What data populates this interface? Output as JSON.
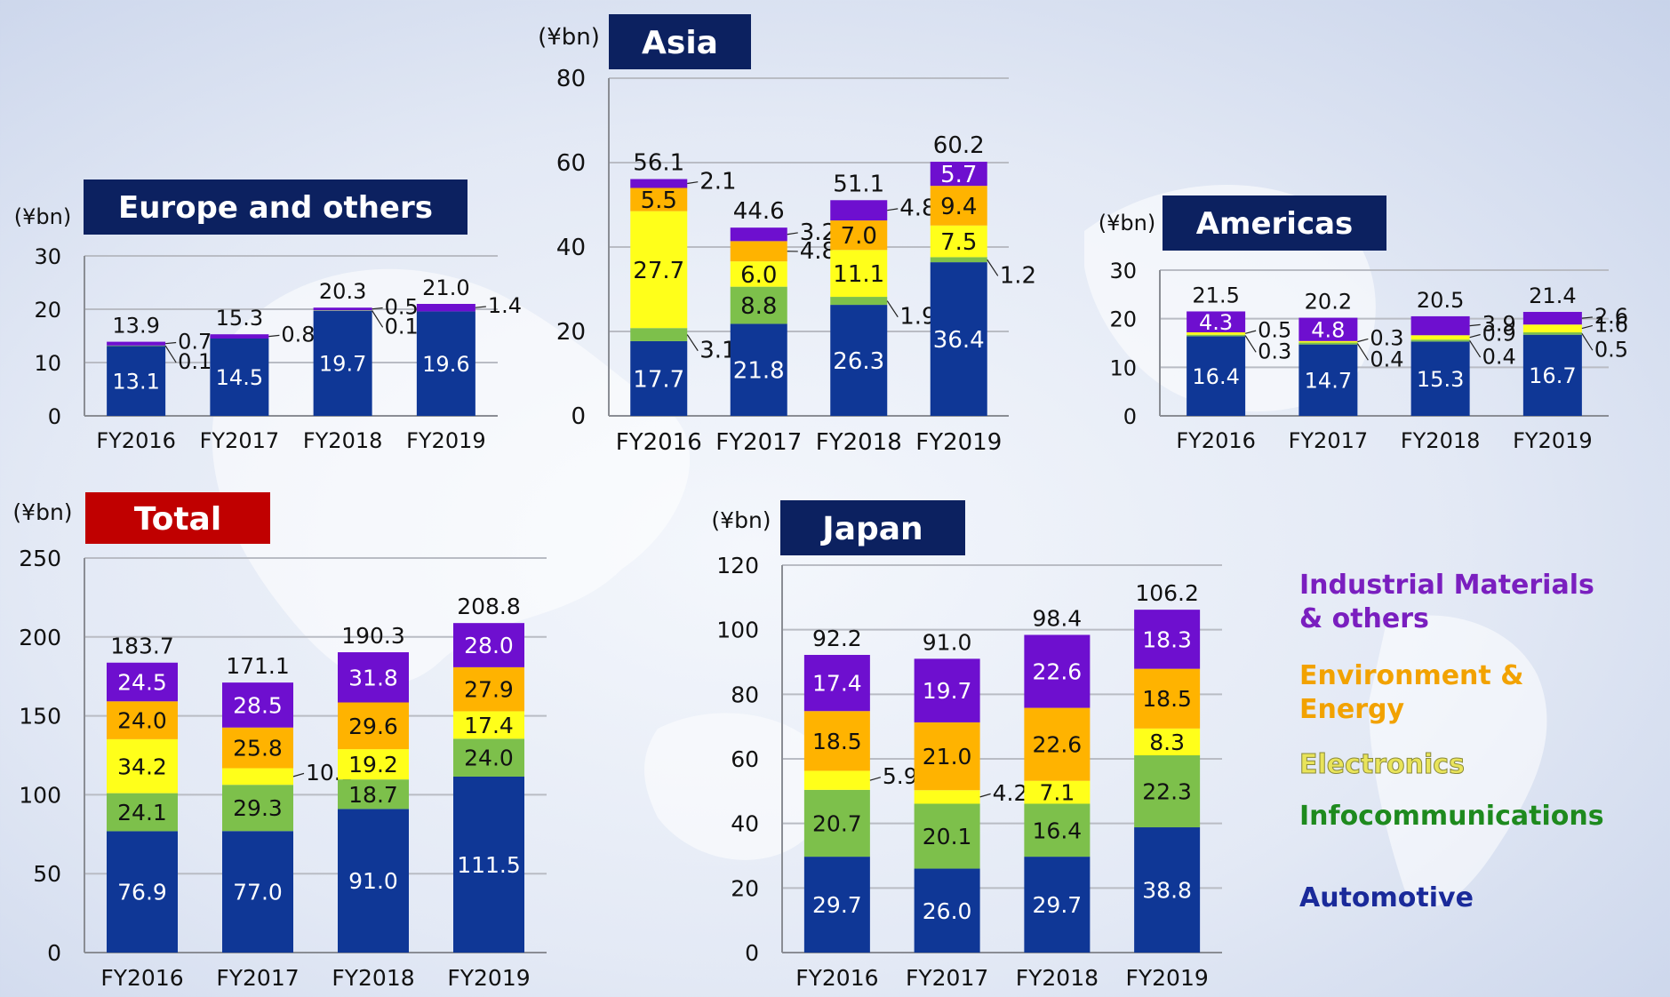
{
  "colors": {
    "automotive": "#0f3796",
    "infocommunications": "#7dc04b",
    "electronics": "#ffff1a",
    "environment_energy": "#ffb300",
    "industrial_materials": "#6e0fcf",
    "title_navy": "#0c2160",
    "title_red": "#c00000"
  },
  "legend": {
    "industrial_materials": "Industrial Materials & others",
    "environment_energy": "Environment & Energy",
    "electronics": "Electronics",
    "infocommunications": "Infocommunications",
    "automotive": "Automotive"
  },
  "chart_data": [
    {
      "id": "europe",
      "type": "bar",
      "stacked": true,
      "title": "Europe and others",
      "unit": "(¥bn)",
      "categories": [
        "FY2016",
        "FY2017",
        "FY2018",
        "FY2019"
      ],
      "ylim": [
        0,
        30
      ],
      "yticks": [
        0,
        10,
        20,
        30
      ],
      "grid": true,
      "totals": [
        "13.9",
        "15.3",
        "20.3",
        "21.0"
      ],
      "series": [
        {
          "key": "automotive",
          "values": [
            13.1,
            14.5,
            19.7,
            19.6
          ],
          "labels": [
            "13.1",
            "14.5",
            "19.7",
            "19.6"
          ]
        },
        {
          "key": "infocommunications",
          "values": [
            0.1,
            0,
            0.1,
            0
          ],
          "labels": [
            "0.1",
            "",
            "0.1",
            ""
          ]
        },
        {
          "key": "electronics",
          "values": [
            0,
            0,
            0,
            0
          ],
          "labels": [
            "",
            "",
            "",
            ""
          ]
        },
        {
          "key": "environment_energy",
          "values": [
            0,
            0,
            0,
            0
          ],
          "labels": [
            "",
            "",
            "",
            ""
          ]
        },
        {
          "key": "industrial_materials",
          "values": [
            0.7,
            0.8,
            0.5,
            1.4
          ],
          "labels": [
            "0.7",
            "0.8",
            "0.5",
            "1.4"
          ]
        }
      ]
    },
    {
      "id": "asia",
      "type": "bar",
      "stacked": true,
      "title": "Asia",
      "unit": "(¥bn)",
      "categories": [
        "FY2016",
        "FY2017",
        "FY2018",
        "FY2019"
      ],
      "ylim": [
        0,
        80
      ],
      "yticks": [
        0,
        20,
        40,
        60,
        80
      ],
      "grid": true,
      "totals": [
        "56.1",
        "44.6",
        "51.1",
        "60.2"
      ],
      "series": [
        {
          "key": "automotive",
          "values": [
            17.7,
            21.8,
            26.3,
            36.4
          ],
          "labels": [
            "17.7",
            "21.8",
            "26.3",
            "36.4"
          ]
        },
        {
          "key": "infocommunications",
          "values": [
            3.1,
            8.8,
            1.9,
            1.2
          ],
          "labels": [
            "3.1",
            "8.8",
            "1.9",
            "1.2"
          ]
        },
        {
          "key": "electronics",
          "values": [
            27.7,
            6.0,
            11.1,
            7.5
          ],
          "labels": [
            "27.7",
            "6.0",
            "11.1",
            "7.5"
          ]
        },
        {
          "key": "environment_energy",
          "values": [
            5.5,
            4.8,
            7.0,
            9.4
          ],
          "labels": [
            "5.5",
            "4.8",
            "7.0",
            "9.4"
          ]
        },
        {
          "key": "industrial_materials",
          "values": [
            2.1,
            3.2,
            4.8,
            5.7
          ],
          "labels": [
            "2.1",
            "3.2",
            "4.8",
            "5.7"
          ]
        }
      ]
    },
    {
      "id": "americas",
      "type": "bar",
      "stacked": true,
      "title": "Americas",
      "unit": "(¥bn)",
      "categories": [
        "FY2016",
        "FY2017",
        "FY2018",
        "FY2019"
      ],
      "ylim": [
        0,
        30
      ],
      "yticks": [
        0,
        10,
        20,
        30
      ],
      "grid": true,
      "totals": [
        "21.5",
        "20.2",
        "20.5",
        "21.4"
      ],
      "series": [
        {
          "key": "automotive",
          "values": [
            16.4,
            14.7,
            15.3,
            16.7
          ],
          "labels": [
            "16.4",
            "14.7",
            "15.3",
            "16.7"
          ]
        },
        {
          "key": "infocommunications",
          "values": [
            0.3,
            0.4,
            0.4,
            0.5
          ],
          "labels": [
            "0.3",
            "0.4",
            "0.4",
            "0.5"
          ]
        },
        {
          "key": "electronics",
          "values": [
            0.5,
            0.3,
            0.9,
            1.6
          ],
          "labels": [
            "0.5",
            "0.3",
            "0.9",
            "1.6"
          ]
        },
        {
          "key": "environment_energy",
          "values": [
            0,
            0,
            0,
            0
          ],
          "labels": [
            "",
            "",
            "",
            ""
          ]
        },
        {
          "key": "industrial_materials",
          "values": [
            4.3,
            4.8,
            3.9,
            2.6
          ],
          "labels": [
            "4.3",
            "4.8",
            "3.9",
            "2.6"
          ]
        }
      ]
    },
    {
      "id": "total",
      "type": "bar",
      "stacked": true,
      "title": "Total",
      "unit": "(¥bn)",
      "categories": [
        "FY2016",
        "FY2017",
        "FY2018",
        "FY2019"
      ],
      "ylim": [
        0,
        250
      ],
      "yticks": [
        0,
        50,
        100,
        150,
        200,
        250
      ],
      "grid": true,
      "totals": [
        "183.7",
        "171.1",
        "190.3",
        "208.8"
      ],
      "series": [
        {
          "key": "automotive",
          "values": [
            76.9,
            77.0,
            91.0,
            111.5
          ],
          "labels": [
            "76.9",
            "77.0",
            "91.0",
            "111.5"
          ]
        },
        {
          "key": "infocommunications",
          "values": [
            24.1,
            29.3,
            18.7,
            24.0
          ],
          "labels": [
            "24.1",
            "29.3",
            "18.7",
            "24.0"
          ]
        },
        {
          "key": "electronics",
          "values": [
            34.2,
            10.5,
            19.2,
            17.4
          ],
          "labels": [
            "34.2",
            "10.5",
            "19.2",
            "17.4"
          ]
        },
        {
          "key": "environment_energy",
          "values": [
            24.0,
            25.8,
            29.6,
            27.9
          ],
          "labels": [
            "24.0",
            "25.8",
            "29.6",
            "27.9"
          ]
        },
        {
          "key": "industrial_materials",
          "values": [
            24.5,
            28.5,
            31.8,
            28.0
          ],
          "labels": [
            "24.5",
            "28.5",
            "31.8",
            "28.0"
          ]
        }
      ]
    },
    {
      "id": "japan",
      "type": "bar",
      "stacked": true,
      "title": "Japan",
      "unit": "(¥bn)",
      "categories": [
        "FY2016",
        "FY2017",
        "FY2018",
        "FY2019"
      ],
      "ylim": [
        0,
        120
      ],
      "yticks": [
        0,
        20,
        40,
        60,
        80,
        100,
        120
      ],
      "grid": true,
      "totals": [
        "92.2",
        "91.0",
        "98.4",
        "106.2"
      ],
      "series": [
        {
          "key": "automotive",
          "values": [
            29.7,
            26.0,
            29.7,
            38.8
          ],
          "labels": [
            "29.7",
            "26.0",
            "29.7",
            "38.8"
          ]
        },
        {
          "key": "infocommunications",
          "values": [
            20.7,
            20.1,
            16.4,
            22.3
          ],
          "labels": [
            "20.7",
            "20.1",
            "16.4",
            "22.3"
          ]
        },
        {
          "key": "electronics",
          "values": [
            5.9,
            4.2,
            7.1,
            8.3
          ],
          "labels": [
            "5.9",
            "4.2",
            "7.1",
            "8.3"
          ]
        },
        {
          "key": "environment_energy",
          "values": [
            18.5,
            21.0,
            22.6,
            18.5
          ],
          "labels": [
            "18.5",
            "21.0",
            "22.6",
            "18.5"
          ]
        },
        {
          "key": "industrial_materials",
          "values": [
            17.4,
            19.7,
            22.6,
            18.3
          ],
          "labels": [
            "17.4",
            "19.7",
            "22.6",
            "18.3"
          ]
        }
      ]
    }
  ]
}
